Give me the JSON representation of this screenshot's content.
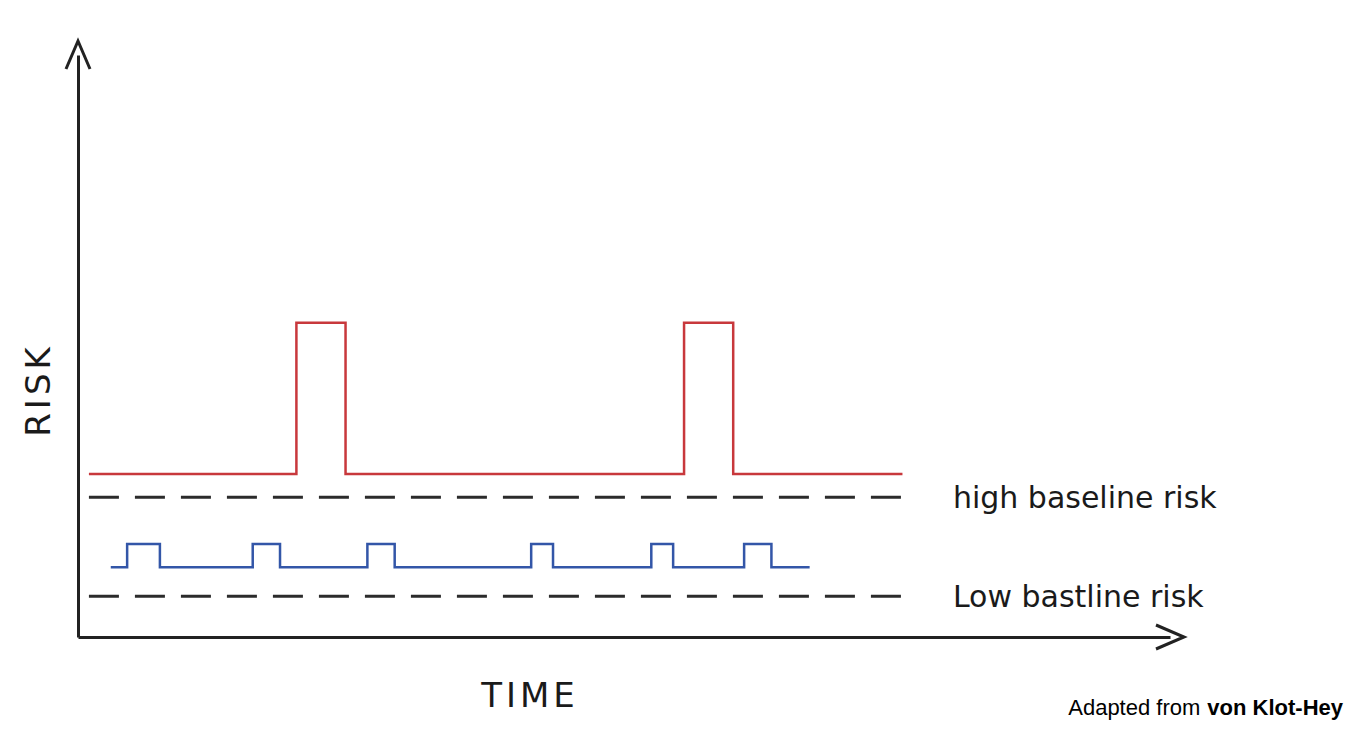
{
  "chart_data": {
    "type": "line",
    "x_label": "TIME",
    "y_label": "RISK",
    "xlim": [
      0,
      100
    ],
    "ylim": [
      0,
      100
    ],
    "tick_labels": false,
    "grid": false,
    "series": [
      {
        "color": "#c8383c",
        "line_style": "solid",
        "x": [
          1,
          20,
          20,
          24.5,
          24.5,
          55.5,
          55.5,
          60,
          60,
          75.5
        ],
        "values": [
          28,
          28,
          54,
          54,
          28,
          28,
          54,
          54,
          28,
          28
        ]
      },
      {
        "color": "#3356a8",
        "line_style": "solid",
        "x": [
          3,
          4.5,
          4.5,
          7.5,
          7.5,
          16,
          16,
          18.5,
          18.5,
          26.5,
          26.5,
          29,
          29,
          41.5,
          41.5,
          43.5,
          43.5,
          52.5,
          52.5,
          54.5,
          54.5,
          61,
          61,
          63.5,
          63.5,
          67
        ],
        "values": [
          12,
          12,
          16,
          16,
          12,
          12,
          16,
          16,
          12,
          12,
          16,
          16,
          12,
          12,
          16,
          16,
          12,
          12,
          16,
          16,
          12,
          12,
          16,
          16,
          12,
          12
        ]
      },
      {
        "name": "high baseline risk",
        "color": "#2b2b2b",
        "line_style": "dashed",
        "x": [
          1,
          76
        ],
        "values": [
          24,
          24
        ]
      },
      {
        "name": "Low bastline risk",
        "color": "#2b2b2b",
        "line_style": "dashed",
        "x": [
          1,
          76
        ],
        "values": [
          7,
          7
        ]
      }
    ],
    "annotations": [
      "Adapted from",
      "von Klot-Hey"
    ]
  }
}
